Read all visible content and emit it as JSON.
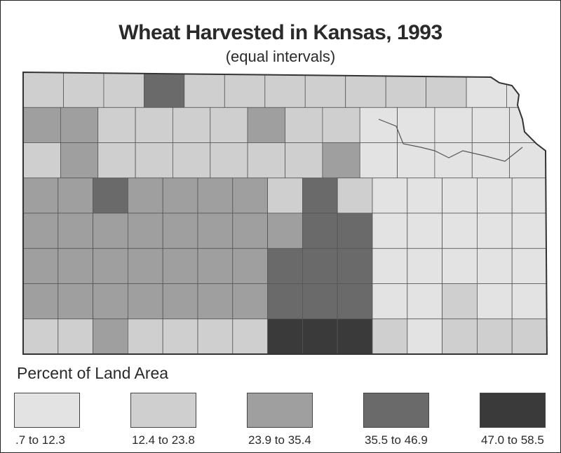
{
  "title": "Wheat Harvested in Kansas, 1993",
  "subtitle": "(equal intervals)",
  "legend": {
    "title": "Percent of Land Area",
    "classes": [
      {
        "label": ".7 to 12.3",
        "color": "#e3e3e3"
      },
      {
        "label": "12.4 to 23.8",
        "color": "#cfcfcf"
      },
      {
        "label": "23.9 to 35.4",
        "color": "#9f9f9f"
      },
      {
        "label": "35.5 to 46.9",
        "color": "#6a6a6a"
      },
      {
        "label": "47.0 to 58.5",
        "color": "#3a3a3a"
      }
    ]
  },
  "map": {
    "outline_color": "#555555",
    "rows": [
      [
        2,
        2,
        2,
        4,
        2,
        2,
        2,
        2,
        2,
        2,
        2,
        1,
        1
      ],
      [
        3,
        3,
        2,
        2,
        2,
        2,
        3,
        2,
        2,
        1,
        1,
        1,
        1,
        1
      ],
      [
        2,
        3,
        2,
        2,
        2,
        2,
        2,
        2,
        3,
        1,
        1,
        1,
        1,
        1
      ],
      [
        3,
        3,
        4,
        3,
        3,
        3,
        3,
        2,
        4,
        2,
        1,
        1,
        1,
        1,
        1
      ],
      [
        3,
        3,
        3,
        3,
        3,
        3,
        3,
        3,
        4,
        4,
        1,
        1,
        1,
        1,
        1
      ],
      [
        3,
        3,
        3,
        3,
        3,
        3,
        3,
        4,
        4,
        4,
        1,
        1,
        1,
        1,
        1
      ],
      [
        3,
        3,
        3,
        3,
        3,
        3,
        3,
        4,
        4,
        4,
        1,
        1,
        2,
        1,
        1
      ],
      [
        2,
        2,
        3,
        2,
        2,
        2,
        2,
        5,
        5,
        5,
        2,
        1,
        2,
        2,
        2
      ]
    ]
  }
}
